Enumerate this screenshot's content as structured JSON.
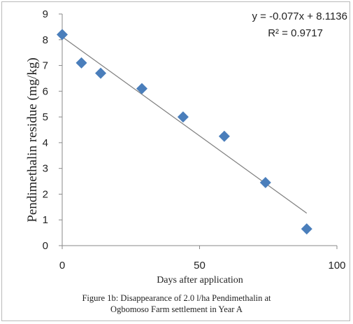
{
  "chart_data": {
    "type": "scatter",
    "x": [
      0,
      7,
      14,
      29,
      44,
      59,
      74,
      89
    ],
    "y": [
      8.2,
      7.1,
      6.7,
      6.1,
      5.0,
      4.25,
      2.45,
      0.65
    ],
    "trendline": {
      "slope": -0.077,
      "intercept": 8.1136,
      "x_range": [
        0,
        89
      ]
    },
    "equation_text": "y = -0.077x + 8.1136",
    "r2_text": "R² = 0.9717",
    "xlabel": "Days after application",
    "ylabel": "Pendimethalin residue (mg/kg)",
    "x_ticks": [
      "0",
      "50",
      "100"
    ],
    "y_ticks": [
      "0",
      "1",
      "2",
      "3",
      "4",
      "5",
      "6",
      "7",
      "8",
      "9"
    ],
    "xlim": [
      0,
      100
    ],
    "ylim": [
      0,
      9
    ],
    "grid": false,
    "marker_color": "#4a7ebb",
    "trendline_color": "#7f7f7f"
  },
  "caption": {
    "line1": "Figure 1b: Disappearance of 2.0 l/ha Pendimethalin at",
    "line2": "Ogbomoso Farm settlement in Year A"
  }
}
